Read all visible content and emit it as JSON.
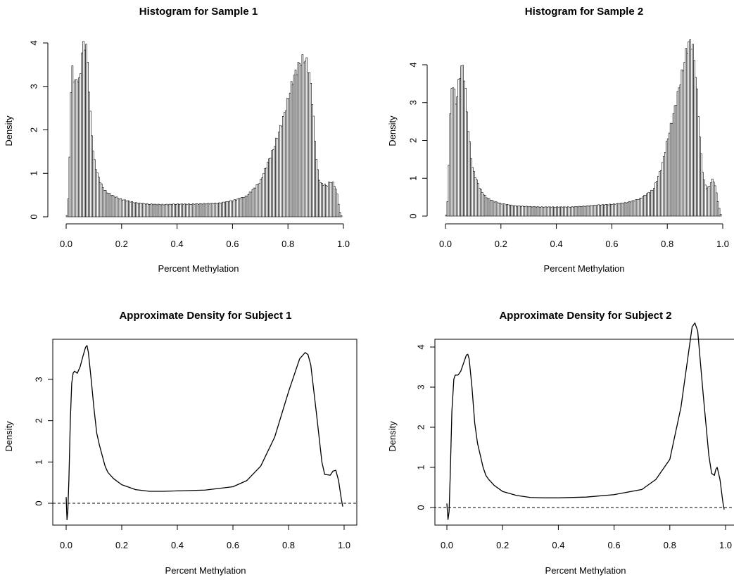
{
  "chart_data": [
    {
      "type": "histogram",
      "title": "Histogram for Sample 1",
      "xlabel": "Percent Methylation",
      "ylabel": "Density",
      "xlim": [
        0.0,
        1.0
      ],
      "ylim": [
        0,
        4
      ],
      "xticks": [
        "0.0",
        "0.2",
        "0.4",
        "0.6",
        "0.8",
        "1.0"
      ],
      "yticks": [
        "0",
        "1",
        "2",
        "3",
        "4"
      ],
      "bin_width": 0.005,
      "density_profile": {
        "x": [
          0.0,
          0.005,
          0.01,
          0.015,
          0.02,
          0.025,
          0.03,
          0.035,
          0.04,
          0.045,
          0.05,
          0.055,
          0.06,
          0.065,
          0.07,
          0.075,
          0.08,
          0.085,
          0.09,
          0.095,
          0.1,
          0.11,
          0.12,
          0.13,
          0.14,
          0.15,
          0.17,
          0.19,
          0.2,
          0.25,
          0.3,
          0.35,
          0.4,
          0.45,
          0.5,
          0.55,
          0.6,
          0.65,
          0.7,
          0.75,
          0.78,
          0.8,
          0.82,
          0.84,
          0.85,
          0.86,
          0.865,
          0.87,
          0.88,
          0.89,
          0.9,
          0.91,
          0.92,
          0.93,
          0.94,
          0.95,
          0.96,
          0.97,
          0.98,
          0.985,
          0.99,
          0.995,
          1.0
        ],
        "y": [
          0,
          0.05,
          0.75,
          2.1,
          3.5,
          3.4,
          3.0,
          3.1,
          3.3,
          3.0,
          3.2,
          3.6,
          3.9,
          4.0,
          3.95,
          3.8,
          3.3,
          2.6,
          2.1,
          1.7,
          1.35,
          1.05,
          0.85,
          0.7,
          0.6,
          0.55,
          0.48,
          0.42,
          0.4,
          0.32,
          0.29,
          0.28,
          0.29,
          0.29,
          0.3,
          0.31,
          0.37,
          0.47,
          0.8,
          1.6,
          2.2,
          2.7,
          3.2,
          3.5,
          3.6,
          3.62,
          3.6,
          3.5,
          3.2,
          2.5,
          1.5,
          0.9,
          0.75,
          0.75,
          0.7,
          0.8,
          0.8,
          0.7,
          0.45,
          0.15,
          0.05,
          0.0,
          0.0
        ]
      }
    },
    {
      "type": "histogram",
      "title": "Histogram for Sample 2",
      "xlabel": "Percent Methylation",
      "ylabel": "Density",
      "xlim": [
        0.0,
        1.0
      ],
      "ylim": [
        0,
        4.6
      ],
      "xticks": [
        "0.0",
        "0.2",
        "0.4",
        "0.6",
        "0.8",
        "1.0"
      ],
      "yticks": [
        "0",
        "1",
        "2",
        "3",
        "4"
      ],
      "bin_width": 0.005,
      "density_profile": {
        "x": [
          0.0,
          0.005,
          0.01,
          0.015,
          0.02,
          0.025,
          0.03,
          0.035,
          0.04,
          0.045,
          0.05,
          0.055,
          0.06,
          0.065,
          0.07,
          0.075,
          0.08,
          0.085,
          0.09,
          0.095,
          0.1,
          0.11,
          0.12,
          0.13,
          0.14,
          0.15,
          0.17,
          0.2,
          0.25,
          0.3,
          0.35,
          0.4,
          0.45,
          0.5,
          0.55,
          0.6,
          0.65,
          0.7,
          0.75,
          0.78,
          0.8,
          0.82,
          0.84,
          0.86,
          0.87,
          0.88,
          0.885,
          0.89,
          0.9,
          0.91,
          0.92,
          0.93,
          0.94,
          0.95,
          0.96,
          0.965,
          0.97,
          0.98,
          0.99,
          0.995,
          1.0
        ],
        "y": [
          0,
          0.05,
          0.7,
          2.1,
          3.2,
          3.5,
          3.5,
          3.0,
          3.0,
          3.4,
          3.6,
          3.9,
          4.0,
          3.8,
          3.6,
          3.0,
          2.5,
          2.1,
          1.7,
          1.4,
          1.2,
          1.0,
          0.8,
          0.65,
          0.55,
          0.48,
          0.4,
          0.33,
          0.27,
          0.25,
          0.24,
          0.24,
          0.24,
          0.26,
          0.29,
          0.31,
          0.35,
          0.45,
          0.7,
          1.3,
          2.0,
          2.6,
          3.3,
          4.0,
          4.4,
          4.6,
          4.58,
          4.55,
          4.0,
          3.0,
          1.8,
          1.0,
          0.75,
          0.75,
          0.95,
          0.95,
          0.9,
          0.5,
          0.1,
          0.0,
          0.0
        ]
      }
    },
    {
      "type": "line",
      "title": "Approximate Density for Subject 1",
      "xlabel": "Percent Methylation",
      "ylabel": "Density",
      "xlim": [
        -0.03,
        1.03
      ],
      "ylim": [
        -0.55,
        4.0
      ],
      "xticks": [
        "0.0",
        "0.2",
        "0.4",
        "0.6",
        "0.8",
        "1.0"
      ],
      "yticks": [
        "0",
        "1",
        "2",
        "3"
      ],
      "reference_line": {
        "y": 0,
        "style": "dashed"
      },
      "x": [
        0.0,
        0.003,
        0.006,
        0.01,
        0.015,
        0.02,
        0.025,
        0.03,
        0.04,
        0.05,
        0.06,
        0.07,
        0.075,
        0.08,
        0.09,
        0.1,
        0.11,
        0.12,
        0.13,
        0.14,
        0.15,
        0.17,
        0.2,
        0.25,
        0.3,
        0.35,
        0.4,
        0.5,
        0.6,
        0.65,
        0.7,
        0.75,
        0.8,
        0.84,
        0.86,
        0.87,
        0.88,
        0.9,
        0.92,
        0.93,
        0.95,
        0.96,
        0.97,
        0.98,
        0.99,
        0.995
      ],
      "y": [
        0.15,
        -0.4,
        -0.2,
        0.6,
        2.0,
        2.9,
        3.15,
        3.2,
        3.15,
        3.3,
        3.55,
        3.78,
        3.82,
        3.65,
        3.0,
        2.3,
        1.7,
        1.4,
        1.15,
        0.9,
        0.75,
        0.6,
        0.45,
        0.33,
        0.29,
        0.29,
        0.3,
        0.32,
        0.4,
        0.55,
        0.9,
        1.6,
        2.7,
        3.5,
        3.65,
        3.6,
        3.35,
        2.2,
        1.0,
        0.7,
        0.68,
        0.78,
        0.8,
        0.55,
        0.1,
        -0.08
      ]
    },
    {
      "type": "line",
      "title": "Approximate Density for Subject 2",
      "xlabel": "Percent Methylation",
      "ylabel": "Density",
      "xlim": [
        -0.03,
        1.03
      ],
      "ylim": [
        -0.55,
        4.8
      ],
      "xticks": [
        "0.0",
        "0.2",
        "0.4",
        "0.6",
        "0.8",
        "1.0"
      ],
      "yticks": [
        "0",
        "1",
        "2",
        "3",
        "4"
      ],
      "reference_line": {
        "y": 0,
        "style": "dashed"
      },
      "x": [
        0.0,
        0.004,
        0.008,
        0.012,
        0.018,
        0.025,
        0.03,
        0.04,
        0.05,
        0.06,
        0.07,
        0.075,
        0.08,
        0.09,
        0.1,
        0.11,
        0.12,
        0.13,
        0.14,
        0.15,
        0.17,
        0.2,
        0.25,
        0.3,
        0.35,
        0.4,
        0.5,
        0.6,
        0.7,
        0.75,
        0.8,
        0.84,
        0.87,
        0.88,
        0.89,
        0.9,
        0.92,
        0.94,
        0.95,
        0.96,
        0.965,
        0.97,
        0.98,
        0.99,
        0.995
      ],
      "y": [
        0.1,
        -0.3,
        -0.1,
        0.8,
        2.4,
        3.2,
        3.3,
        3.3,
        3.4,
        3.6,
        3.8,
        3.82,
        3.7,
        3.0,
        2.1,
        1.6,
        1.3,
        1.0,
        0.8,
        0.7,
        0.55,
        0.4,
        0.3,
        0.25,
        0.24,
        0.24,
        0.26,
        0.32,
        0.45,
        0.7,
        1.2,
        2.5,
        4.0,
        4.5,
        4.6,
        4.4,
        2.8,
        1.3,
        0.85,
        0.8,
        0.95,
        1.0,
        0.7,
        0.15,
        -0.05
      ]
    }
  ]
}
